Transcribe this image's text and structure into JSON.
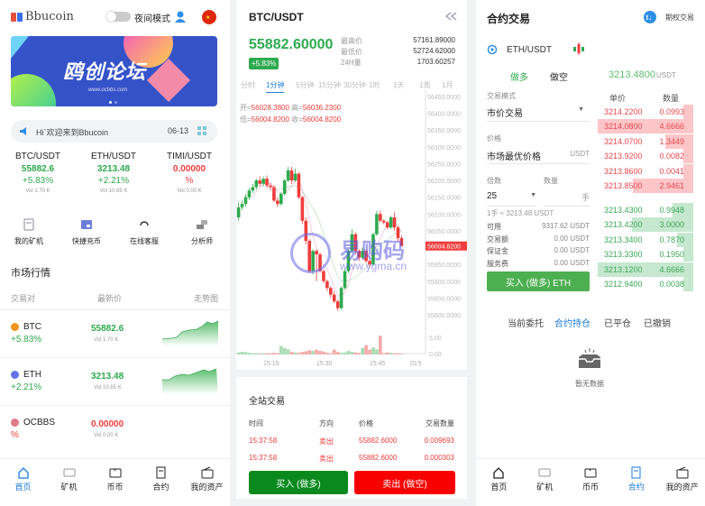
{
  "home": {
    "logo": "Bbucoin",
    "night_mode": "夜间模式",
    "banner": {
      "title": "鸥创论坛",
      "url": "www.ocbbs.com"
    },
    "notice": {
      "text": "Hi`欢迎来到Bbucoin",
      "date": "06-13"
    },
    "tickers": [
      {
        "pair": "BTC/USDT",
        "price": "55882.6",
        "change": "+5.83%",
        "vol": "Vol 1.70 K",
        "trend": "up"
      },
      {
        "pair": "ETH/USDT",
        "price": "3213.48",
        "change": "+2.21%",
        "vol": "Vol 10.85 K",
        "trend": "up"
      },
      {
        "pair": "TIMI/USDT",
        "price": "0.00000",
        "change": "%",
        "vol": "Vol 0.00 K",
        "trend": "down"
      }
    ],
    "quick": [
      {
        "label": "我的矿机",
        "icon": "miner-icon"
      },
      {
        "label": "快捷充币",
        "icon": "deposit-icon"
      },
      {
        "label": "在线客服",
        "icon": "headset-icon"
      },
      {
        "label": "分析师",
        "icon": "analyst-icon"
      }
    ],
    "market": {
      "title": "市场行情",
      "headers": [
        "交易对",
        "最新价",
        "走势图"
      ],
      "rows": [
        {
          "coin": "BTC",
          "change": "+5.83%",
          "price": "55882.6",
          "vol": "Vol 1.70 K",
          "color": "#f0961e",
          "trend": "up"
        },
        {
          "coin": "ETH",
          "change": "+2.21%",
          "price": "3213.48",
          "vol": "Vol 10.85 K",
          "color": "#6274e8",
          "trend": "up"
        },
        {
          "coin": "OCBBS",
          "change": "%",
          "price": "0.00000",
          "vol": "Vol 0.00 K",
          "color": "#e07a8a",
          "trend": "down"
        }
      ]
    },
    "nav": [
      {
        "label": "首页",
        "active": true
      },
      {
        "label": "矿机"
      },
      {
        "label": "币币"
      },
      {
        "label": "合约"
      },
      {
        "label": "我的资产"
      }
    ]
  },
  "kline": {
    "pair": "BTC/USDT",
    "price": "55882.60000",
    "change": "+5.83%",
    "stats": [
      {
        "label": "最高价",
        "value": "57161.89000"
      },
      {
        "label": "最低价",
        "value": "52724.62000"
      },
      {
        "label": "24H量",
        "value": "1703.60257"
      }
    ],
    "intervals": [
      "分时",
      "1分钟",
      "5分钟",
      "15分钟",
      "30分钟",
      "1时",
      "1天",
      "1周",
      "1月"
    ],
    "active_interval": "1分钟",
    "ohlc": {
      "open_label": "开=",
      "open": "56028.3800",
      "high_label": "高=",
      "high": "56036.2300",
      "low_label": "低=",
      "low": "56004.8200",
      "close_label": "收=",
      "close": "56004.8200"
    },
    "watermark": {
      "text": "易购码",
      "url": "www.ygma.cn"
    },
    "trades": {
      "title": "全站交易",
      "headers": [
        "时间",
        "方向",
        "价格",
        "交易数量"
      ],
      "rows": [
        [
          "15:37:58",
          "卖出",
          "55882.6000",
          "0.009693"
        ],
        [
          "15:37:58",
          "卖出",
          "55882.6000",
          "0.000303"
        ]
      ]
    },
    "buy_label": "买入 (做多)",
    "sell_label": "卖出 (做空)"
  },
  "chart_data": {
    "type": "candlestick",
    "title": "",
    "xlabel": "",
    "ylabel": "",
    "ylim": [
      55800,
      56450
    ],
    "y_ticks": [
      "56450.0000",
      "56400.0000",
      "56350.0000",
      "56300.0000",
      "56250.0000",
      "56200.0000",
      "56150.0000",
      "56100.0000",
      "56050.0000",
      "55950.0000",
      "55900.0000",
      "55850.0000",
      "55800.0000"
    ],
    "x_ticks": [
      "15:15",
      "15:30",
      "15:45",
      "15:5"
    ],
    "volume_ticks": [
      "5.00",
      "0.00"
    ],
    "last_price": "56004.8200",
    "colors": {
      "up": "#2eaa4f",
      "down": "#f03c3c",
      "up_vol": "#a8dcb3",
      "down_vol": "#f6a9a9"
    },
    "fields": [
      "time",
      "open",
      "high",
      "low",
      "close",
      "volume"
    ],
    "candles": [
      [
        "15:06",
        56090,
        56135,
        56080,
        56120,
        0.6
      ],
      [
        "15:07",
        56120,
        56140,
        56112,
        56130,
        0.8
      ],
      [
        "15:08",
        56130,
        56160,
        56122,
        56150,
        0.7
      ],
      [
        "15:09",
        56150,
        56178,
        56142,
        56170,
        0.5
      ],
      [
        "15:10",
        56170,
        56190,
        56162,
        56180,
        0.3
      ],
      [
        "15:11",
        56180,
        56205,
        56172,
        56200,
        0.4
      ],
      [
        "15:12",
        56200,
        56212,
        56182,
        56190,
        0.2
      ],
      [
        "15:13",
        56190,
        56212,
        56182,
        56205,
        0.3
      ],
      [
        "15:14",
        56205,
        56215,
        56178,
        56185,
        0.4
      ],
      [
        "15:15",
        56185,
        56192,
        56172,
        56180,
        0.3
      ],
      [
        "15:16",
        56180,
        56185,
        56135,
        56140,
        0.5
      ],
      [
        "15:17",
        56140,
        56150,
        56120,
        56130,
        0.4
      ],
      [
        "15:18",
        56130,
        56165,
        56125,
        56160,
        2.6
      ],
      [
        "15:19",
        56160,
        56205,
        56155,
        56200,
        2.0
      ],
      [
        "15:20",
        56200,
        56240,
        56195,
        56230,
        1.6
      ],
      [
        "15:21",
        56230,
        56240,
        56190,
        56200,
        0.8
      ],
      [
        "15:22",
        56200,
        56235,
        56195,
        56220,
        0.6
      ],
      [
        "15:23",
        56220,
        56225,
        56145,
        56150,
        0.5
      ],
      [
        "15:24",
        56150,
        56155,
        56070,
        56080,
        0.8
      ],
      [
        "15:25",
        56080,
        56090,
        56010,
        56020,
        1.0
      ],
      [
        "15:26",
        56020,
        56025,
        55925,
        55930,
        1.3
      ],
      [
        "15:27",
        55930,
        55995,
        55920,
        55990,
        1.1
      ],
      [
        "15:28",
        55990,
        55995,
        55900,
        55980,
        1.5
      ],
      [
        "15:29",
        55980,
        55985,
        55925,
        55930,
        1.1
      ],
      [
        "15:30",
        55930,
        55935,
        55895,
        55900,
        0.9
      ],
      [
        "15:31",
        55900,
        55905,
        55870,
        55880,
        0.5
      ],
      [
        "15:32",
        55880,
        55885,
        55850,
        55860,
        0.4
      ],
      [
        "15:33",
        55860,
        55870,
        55835,
        55840,
        1.5
      ],
      [
        "15:34",
        55840,
        55845,
        55812,
        55820,
        0.8
      ],
      [
        "15:35",
        55820,
        55885,
        55815,
        55880,
        0.5
      ],
      [
        "15:36",
        55880,
        55935,
        55875,
        55930,
        0.6
      ],
      [
        "15:37",
        55930,
        55995,
        55925,
        55990,
        1.1
      ],
      [
        "15:38",
        55990,
        56055,
        55985,
        56040,
        0.8
      ],
      [
        "15:39",
        56040,
        56045,
        55980,
        55990,
        0.6
      ],
      [
        "15:40",
        55990,
        55995,
        55960,
        55970,
        0.5
      ],
      [
        "15:41",
        55970,
        56000,
        55965,
        55990,
        2.0
      ],
      [
        "15:42",
        55990,
        55995,
        55955,
        55960,
        2.9
      ],
      [
        "15:43",
        55960,
        55965,
        55940,
        55950,
        1.5
      ],
      [
        "15:44",
        55950,
        56045,
        55945,
        56040,
        2.2
      ],
      [
        "15:45",
        56040,
        56110,
        56035,
        56100,
        1.6
      ],
      [
        "15:46",
        56100,
        56110,
        56075,
        56080,
        5.8
      ],
      [
        "15:47",
        56080,
        56085,
        56070,
        56075,
        0.4
      ],
      [
        "15:48",
        56075,
        56080,
        56055,
        56060,
        0.6
      ],
      [
        "15:49",
        56060,
        56095,
        56055,
        56090,
        0.5
      ],
      [
        "15:50",
        56090,
        56105,
        56050,
        56060,
        0.3
      ],
      [
        "15:51",
        56060,
        56065,
        56020,
        56028.38,
        0.4
      ],
      [
        "15:52",
        56028.38,
        56036.23,
        56004.82,
        56004.82,
        0.2
      ]
    ]
  },
  "contract": {
    "title": "合约交易",
    "options_label": "期权交易",
    "pair": "ETH/USDT",
    "long_label": "做多",
    "short_label": "做空",
    "price": "3213.4800",
    "price_unit": "USDT",
    "mode_label": "交易模式",
    "mode_value": "市价交易",
    "price_label": "价格",
    "price_value": "市场最优价格",
    "price_field_unit": "USDT",
    "leverage_label": "倍数",
    "leverage_value": "25",
    "qty_label": "数量",
    "qty_unit": "手",
    "lot_info": "1手 ≈ 3213.48 USDT",
    "summary": [
      {
        "label": "可用",
        "value": "9317.62 USDT"
      },
      {
        "label": "交易额",
        "value": "0.00 USDT"
      },
      {
        "label": "保证金",
        "value": "0.00 USDT"
      },
      {
        "label": "服务费",
        "value": "0.00 USDT"
      }
    ],
    "buy_label": "买入 (做多) ETH",
    "book_headers": [
      "单价",
      "数量"
    ],
    "asks": [
      [
        "3214.2200",
        "0.0993"
      ],
      [
        "3214.0800",
        "4.6666"
      ],
      [
        "3214.0700",
        "1.3449"
      ],
      [
        "3213.9200",
        "0.0082"
      ],
      [
        "3213.8600",
        "0.0041"
      ],
      [
        "3213.8500",
        "2.9461"
      ]
    ],
    "bids": [
      [
        "3213.4300",
        "0.9948"
      ],
      [
        "3213.4200",
        "3.0000"
      ],
      [
        "3213.3400",
        "0.7870"
      ],
      [
        "3213.3300",
        "0.1950"
      ],
      [
        "3213.1200",
        "4.6666"
      ],
      [
        "3212.9400",
        "0.0038"
      ]
    ],
    "tabs": [
      "当前委托",
      "合约持仓",
      "已平仓",
      "已撤销"
    ],
    "active_tab": "合约持仓",
    "empty": "暂无数据",
    "nav": [
      {
        "label": "首页"
      },
      {
        "label": "矿机"
      },
      {
        "label": "币币"
      },
      {
        "label": "合约",
        "active": true
      },
      {
        "label": "我的资产"
      }
    ]
  }
}
